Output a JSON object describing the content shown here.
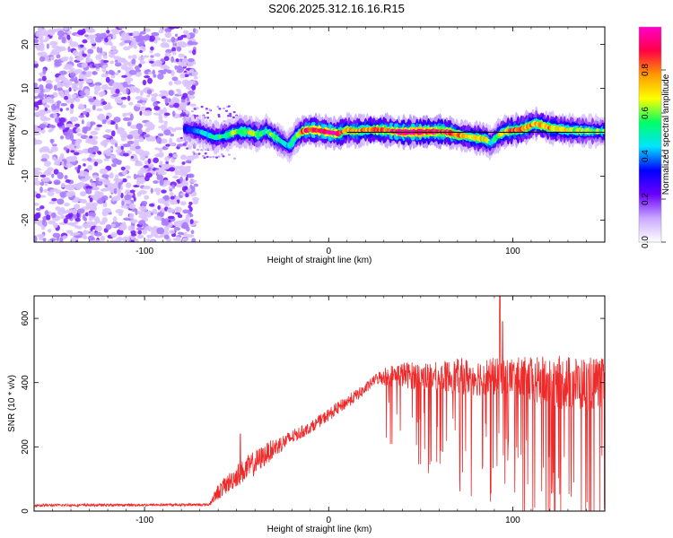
{
  "title": "S206.2025.312.16.16.R15",
  "chart_data": [
    {
      "type": "heatmap",
      "title": "S206.2025.312.16.16.R15",
      "xlabel": "Height of straight line (km)",
      "ylabel": "Frequency (Hz)",
      "xlim": [
        -160,
        150
      ],
      "ylim": [
        -25,
        24
      ],
      "xticks": [
        -100,
        0,
        100
      ],
      "yticks": [
        -20,
        -10,
        0,
        10,
        20
      ],
      "colorbar": {
        "label": "Normalized spectral amplitude",
        "range": [
          0,
          1
        ],
        "ticks": [
          0.0,
          0.2,
          0.4,
          0.6,
          0.8
        ],
        "tick_labels": [
          "0.0",
          "0.2",
          "0.4",
          "0.6",
          "0.8"
        ],
        "colors": [
          "#ffffff",
          "#c9a8ff",
          "#6a00ff",
          "#0000ff",
          "#00e5ff",
          "#00ff66",
          "#ffff00",
          "#ff9900",
          "#ff0044",
          "#ff00cc"
        ]
      },
      "noise_region_x": [
        -160,
        -72
      ],
      "ridge": {
        "x": [
          -78,
          -70,
          -62,
          -56,
          -50,
          -44,
          -38,
          -34,
          -30,
          -26,
          -22,
          -20,
          -18,
          -14,
          -10,
          -5,
          0,
          5,
          10,
          15,
          20,
          30,
          40,
          50,
          60,
          65,
          70,
          75,
          80,
          85,
          88,
          92,
          96,
          100,
          104,
          108,
          112,
          116,
          120,
          125,
          130,
          140,
          150
        ],
        "freq": [
          0.8,
          0.2,
          -1.2,
          -0.8,
          0.2,
          0.1,
          -0.6,
          0.3,
          -0.8,
          -2.0,
          -3.2,
          -2.5,
          -1.0,
          0.3,
          0.6,
          0.4,
          0.0,
          -0.3,
          0.5,
          0.2,
          0.6,
          0.5,
          0.0,
          0.1,
          0.2,
          0.0,
          -0.6,
          -0.9,
          -1.3,
          -1.5,
          -2.5,
          -0.8,
          0.2,
          0.4,
          0.6,
          1.2,
          2.0,
          1.6,
          1.0,
          0.8,
          0.5,
          0.3,
          0.2
        ],
        "amp": [
          0.35,
          0.45,
          0.5,
          0.55,
          0.6,
          0.65,
          0.6,
          0.55,
          0.6,
          0.5,
          0.45,
          0.55,
          0.6,
          0.8,
          0.9,
          0.85,
          0.95,
          0.9,
          0.75,
          0.8,
          0.75,
          0.85,
          0.95,
          1.0,
          0.95,
          0.9,
          0.8,
          0.75,
          0.7,
          0.7,
          0.5,
          0.6,
          0.75,
          0.8,
          0.75,
          0.8,
          0.7,
          0.8,
          0.75,
          0.7,
          0.65,
          0.6,
          0.55
        ]
      }
    },
    {
      "type": "line",
      "xlabel": "Height of straight line (km)",
      "ylabel": "SNR (10 * v/v)",
      "xlim": [
        -160,
        150
      ],
      "ylim": [
        0,
        670
      ],
      "xticks": [
        -100,
        0,
        100
      ],
      "yticks": [
        0,
        200,
        400,
        600
      ],
      "series": [
        {
          "name": "SNR",
          "color": "#ee2a2a",
          "envelope_x": [
            -160,
            -65,
            -60,
            -50,
            -40,
            -30,
            -20,
            -10,
            0,
            10,
            20,
            25,
            30,
            40,
            50,
            60,
            70,
            80,
            90,
            95,
            100,
            110,
            120,
            130,
            140,
            150
          ],
          "mean": [
            18,
            20,
            60,
            110,
            150,
            195,
            230,
            260,
            300,
            340,
            380,
            410,
            420,
            425,
            420,
            420,
            420,
            418,
            418,
            420,
            420,
            405,
            400,
            400,
            395,
            400
          ],
          "spread": [
            8,
            8,
            50,
            70,
            80,
            60,
            45,
            35,
            40,
            40,
            35,
            30,
            60,
            80,
            90,
            90,
            110,
            120,
            120,
            110,
            120,
            150,
            170,
            170,
            170,
            150
          ],
          "peaks": [
            {
              "x": 93,
              "y": 670
            },
            {
              "x": 94.5,
              "y": 590
            },
            {
              "x": -48,
              "y": 240
            }
          ]
        }
      ]
    }
  ]
}
